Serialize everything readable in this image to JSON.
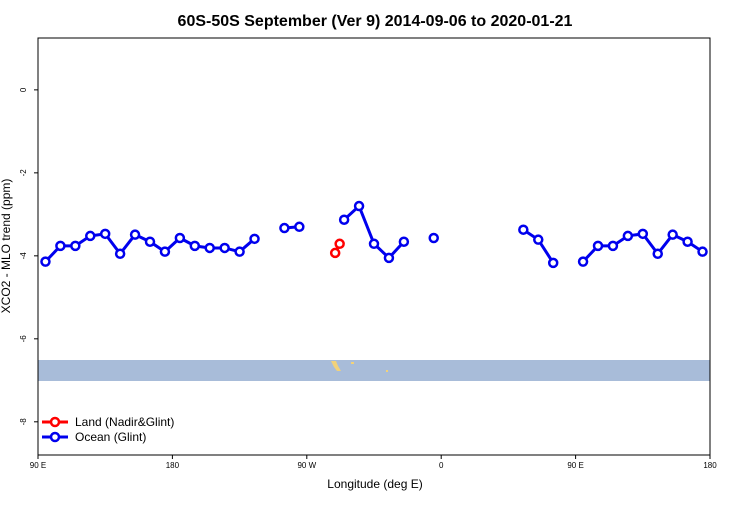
{
  "chart_data": {
    "type": "line",
    "title": "60S-50S September (Ver 9)   2014-09-06 to 2020-01-21",
    "x_label": "Longitude (deg E)",
    "y_label": "XCO2 - MLO trend (ppm)",
    "xlim": [
      90,
      540
    ],
    "ylim": [
      -8.8,
      1.25
    ],
    "xticks": [
      {
        "value": 90,
        "label": "90 E"
      },
      180,
      {
        "value": 270,
        "label": "90 W"
      },
      {
        "value": 360,
        "label": "0"
      },
      {
        "value": 450,
        "label": "90 E"
      },
      {
        "value": 540,
        "label": "180"
      }
    ],
    "yticks": [
      0,
      -2,
      -4,
      -6,
      -8
    ],
    "legend": "bottom-left",
    "series": [
      {
        "name": "Land (Nadir&Glint)",
        "color": "#ff0000",
        "x": [
          289,
          292
        ],
        "values": [
          -3.93,
          -3.71
        ]
      },
      {
        "name": "Ocean (Glint)",
        "color": "#0000ee",
        "x": [
          95,
          105,
          115,
          125,
          135,
          145,
          155,
          165,
          175,
          185,
          195,
          205,
          215,
          225,
          235,
          245,
          255,
          265,
          275,
          285,
          295,
          305,
          315,
          325,
          335,
          345,
          355,
          365,
          375,
          385,
          395,
          405,
          415,
          425,
          435,
          445,
          455,
          465,
          475,
          485,
          495,
          505,
          515,
          525,
          535
        ],
        "values": [
          -4.14,
          -3.76,
          -3.76,
          -3.52,
          -3.47,
          -3.95,
          -3.49,
          -3.66,
          -3.9,
          -3.57,
          -3.76,
          -3.81,
          -3.81,
          -3.9,
          -3.59,
          null,
          -3.33,
          -3.3,
          null,
          null,
          -3.13,
          -2.8,
          -3.71,
          -4.05,
          -3.66,
          null,
          -3.57,
          null,
          null,
          null,
          null,
          null,
          -3.37,
          -3.61,
          -4.17,
          null,
          -4.14,
          -3.76,
          -3.76,
          -3.52,
          -3.47,
          -3.95,
          -3.49,
          -3.66,
          -3.9
        ]
      }
    ]
  }
}
